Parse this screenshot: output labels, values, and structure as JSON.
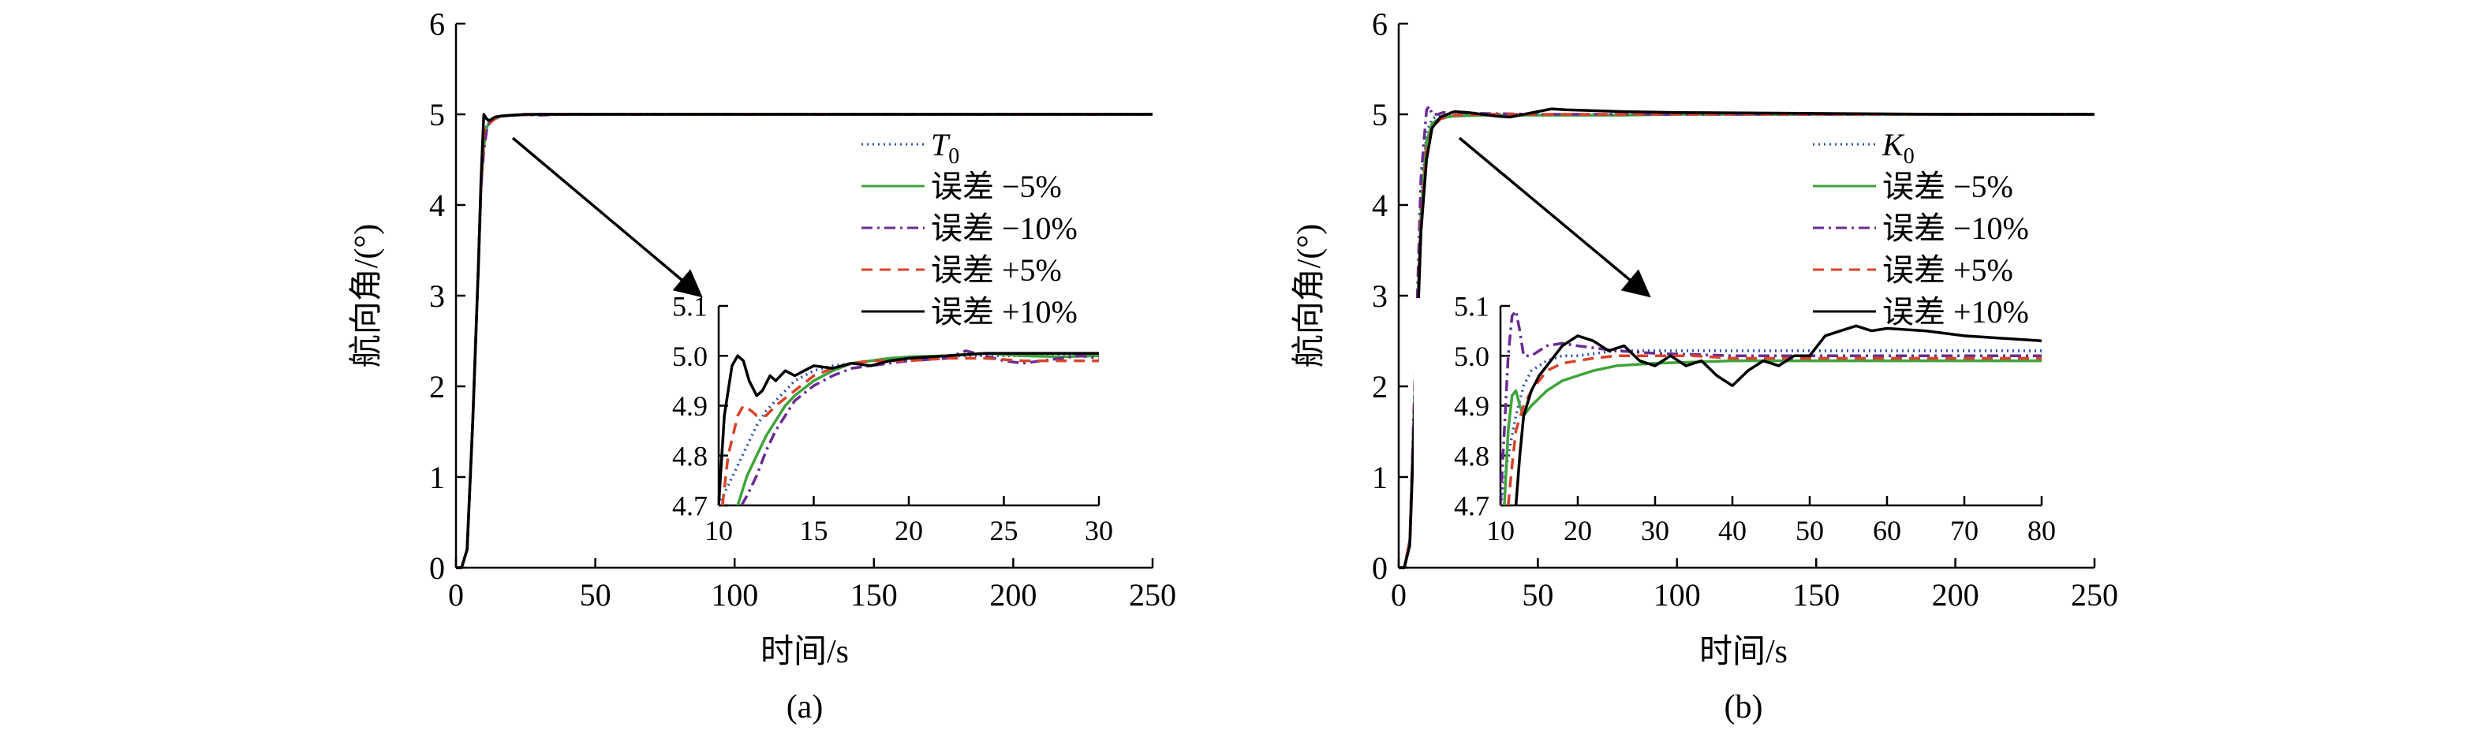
{
  "styles": {
    "dotted": {
      "color": "#2b4fa8",
      "dash": "2 5"
    },
    "solid_green": {
      "color": "#3fa33c",
      "dash": ""
    },
    "dashdot": {
      "color": "#6a2c91",
      "dash": "14 6 3 6"
    },
    "dashed_red": {
      "color": "#d8432a",
      "dash": "14 9"
    },
    "solid_black": {
      "color": "#000000",
      "dash": ""
    }
  },
  "chart_data": [
    {
      "id": "a",
      "caption": "(a)",
      "type": "line",
      "xlabel": "时间/s",
      "ylabel": "航向角/(°)",
      "xlim": [
        0,
        250
      ],
      "ylim": [
        0,
        6
      ],
      "xticks": [
        0,
        50,
        100,
        150,
        200,
        250
      ],
      "yticks": [
        0,
        1,
        2,
        3,
        4,
        5,
        6
      ],
      "legend_position": "right",
      "series": [
        {
          "name": "T",
          "name_sub": "0",
          "style": "dotted",
          "x": [
            0,
            2,
            4,
            6,
            8,
            9,
            10,
            11,
            12,
            14,
            16,
            20,
            25,
            30,
            40,
            60,
            100,
            150,
            200,
            250
          ],
          "y": [
            0,
            0,
            0.2,
            1.6,
            3.3,
            4.2,
            4.7,
            4.88,
            4.94,
            4.97,
            4.985,
            4.99,
            4.995,
            5.0,
            5.0,
            5.0,
            5.0,
            5.0,
            5.0,
            5.0
          ]
        },
        {
          "name": "误差 −5%",
          "style": "solid_green",
          "x": [
            0,
            2,
            4,
            6,
            8,
            9,
            10,
            11,
            12,
            14,
            16,
            20,
            25,
            30,
            40,
            60,
            100,
            150,
            200,
            250
          ],
          "y": [
            0,
            0,
            0.2,
            1.6,
            3.3,
            4.2,
            4.65,
            4.85,
            4.92,
            4.96,
            4.98,
            4.99,
            4.995,
            5.0,
            5.0,
            5.0,
            5.0,
            5.0,
            5.0,
            5.0
          ]
        },
        {
          "name": "误差 −10%",
          "style": "dashdot",
          "x": [
            0,
            2,
            4,
            6,
            8,
            9,
            10,
            11,
            12,
            14,
            16,
            20,
            25,
            30,
            40,
            60,
            100,
            150,
            200,
            250
          ],
          "y": [
            0,
            0,
            0.2,
            1.6,
            3.3,
            4.2,
            4.6,
            4.82,
            4.9,
            4.95,
            4.98,
            4.99,
            4.995,
            4.99,
            5.0,
            5.0,
            5.0,
            5.0,
            5.0,
            5.0
          ]
        },
        {
          "name": "误差 +5%",
          "style": "dashed_red",
          "x": [
            0,
            2,
            4,
            6,
            8,
            9,
            10,
            11,
            12,
            14,
            16,
            20,
            25,
            30,
            40,
            60,
            100,
            150,
            200,
            250
          ],
          "y": [
            0,
            0,
            0.2,
            1.6,
            3.3,
            4.2,
            4.8,
            4.89,
            4.9,
            4.95,
            4.98,
            4.99,
            4.995,
            5.0,
            5.0,
            5.0,
            5.0,
            5.0,
            5.0,
            5.0
          ]
        },
        {
          "name": "误差 +10%",
          "style": "solid_black",
          "x": [
            0,
            2,
            4,
            6,
            8,
            9,
            10,
            11,
            12,
            14,
            16,
            20,
            25,
            30,
            40,
            60,
            100,
            150,
            200,
            250
          ],
          "y": [
            0,
            0,
            0.2,
            1.6,
            3.3,
            4.3,
            5.0,
            4.95,
            4.93,
            4.97,
            4.98,
            4.99,
            5.0,
            5.0,
            5.0,
            5.0,
            5.0,
            5.0,
            5.0,
            5.0
          ]
        }
      ],
      "inset": {
        "xlim": [
          10,
          30
        ],
        "ylim": [
          4.7,
          5.1
        ],
        "xticks": [
          10,
          15,
          20,
          25,
          30
        ],
        "yticks": [
          4.7,
          4.8,
          4.9,
          5.0,
          5.1
        ],
        "series": [
          {
            "style": "dotted",
            "x": [
              10,
              10.5,
              11,
              11.5,
              12,
              12.5,
              13,
              13.5,
              14,
              15,
              16,
              17,
              18,
              20,
              22,
              24,
              26,
              28,
              30
            ],
            "y": [
              4.7,
              4.74,
              4.78,
              4.82,
              4.86,
              4.89,
              4.91,
              4.93,
              4.95,
              4.97,
              4.98,
              4.985,
              4.99,
              4.995,
              5.0,
              5.0,
              5.0,
              5.0,
              5.0
            ]
          },
          {
            "style": "solid_green",
            "x": [
              11,
              11.5,
              12,
              12.5,
              13,
              13.5,
              14,
              15,
              16,
              17,
              18,
              19,
              20,
              22,
              24,
              26,
              28,
              30
            ],
            "y": [
              4.7,
              4.76,
              4.8,
              4.84,
              4.87,
              4.9,
              4.92,
              4.95,
              4.97,
              4.985,
              4.99,
              4.995,
              4.998,
              5.0,
              5.005,
              5.0,
              4.998,
              5.0
            ]
          },
          {
            "style": "dashdot",
            "x": [
              11.2,
              11.5,
              12,
              12.5,
              13,
              13.5,
              14,
              15,
              16,
              17,
              18,
              19,
              20,
              22,
              23,
              24,
              25,
              26,
              27,
              28,
              29,
              30
            ],
            "y": [
              4.7,
              4.72,
              4.76,
              4.81,
              4.85,
              4.88,
              4.91,
              4.94,
              4.96,
              4.975,
              4.98,
              4.985,
              4.99,
              4.995,
              5.01,
              5.0,
              4.99,
              4.985,
              4.99,
              4.995,
              5.0,
              4.995
            ]
          },
          {
            "style": "dashed_red",
            "x": [
              10.2,
              10.5,
              11,
              11.3,
              11.7,
              12,
              12.5,
              13,
              14,
              15,
              16,
              17,
              18,
              20,
              22,
              24,
              26,
              28,
              30
            ],
            "y": [
              4.7,
              4.8,
              4.88,
              4.9,
              4.89,
              4.88,
              4.88,
              4.9,
              4.93,
              4.96,
              4.975,
              4.985,
              4.99,
              4.99,
              4.995,
              4.995,
              4.99,
              4.99,
              4.99
            ]
          },
          {
            "style": "solid_black",
            "x": [
              10,
              10.3,
              10.7,
              11,
              11.3,
              11.6,
              12,
              12.3,
              12.7,
              13,
              13.5,
              14,
              14.5,
              15,
              16,
              17,
              18,
              19,
              20,
              22,
              24,
              26,
              28,
              30
            ],
            "y": [
              4.7,
              4.88,
              4.98,
              5.0,
              4.99,
              4.95,
              4.92,
              4.93,
              4.96,
              4.95,
              4.97,
              4.96,
              4.97,
              4.98,
              4.975,
              4.985,
              4.98,
              4.99,
              4.995,
              5.0,
              5.005,
              5.005,
              5.005,
              5.005
            ]
          }
        ]
      }
    },
    {
      "id": "b",
      "caption": "(b)",
      "type": "line",
      "xlabel": "时间/s",
      "ylabel": "航向角/(°)",
      "xlim": [
        0,
        250
      ],
      "ylim": [
        0,
        6
      ],
      "xticks": [
        0,
        50,
        100,
        150,
        200,
        250
      ],
      "yticks": [
        0,
        1,
        2,
        3,
        4,
        5,
        6
      ],
      "legend_position": "right",
      "series": [
        {
          "name": "K",
          "name_sub": "0",
          "style": "dotted",
          "x": [
            0,
            2,
            4,
            6,
            8,
            10,
            12,
            15,
            20,
            30,
            50,
            80,
            100,
            150,
            200,
            250
          ],
          "y": [
            0,
            0,
            0.3,
            2.2,
            4.0,
            4.8,
            4.95,
            5.0,
            5.0,
            5.0,
            5.0,
            5.0,
            5.0,
            5.0,
            5.0,
            5.0
          ]
        },
        {
          "name": "误差 −5%",
          "style": "solid_green",
          "x": [
            0,
            2,
            4,
            6,
            8,
            10,
            12,
            15,
            20,
            30,
            50,
            80,
            100,
            150,
            200,
            250
          ],
          "y": [
            0,
            0,
            0.3,
            2.2,
            3.9,
            4.7,
            4.9,
            4.96,
            4.98,
            4.99,
            4.99,
            4.99,
            5.0,
            5.0,
            5.0,
            5.0
          ]
        },
        {
          "name": "误差 −10%",
          "style": "dashdot",
          "x": [
            0,
            2,
            4,
            6,
            8,
            10,
            11,
            12,
            14,
            16,
            20,
            30,
            50,
            80,
            100,
            150,
            200,
            250
          ],
          "y": [
            0,
            0,
            0.3,
            2.3,
            4.3,
            5.05,
            5.09,
            5.0,
            5.0,
            5.02,
            5.02,
            5.01,
            5.0,
            5.0,
            5.0,
            5.0,
            5.0,
            5.0
          ]
        },
        {
          "name": "误差 +5%",
          "style": "dashed_red",
          "x": [
            0,
            2,
            4,
            6,
            8,
            10,
            12,
            15,
            20,
            30,
            50,
            80,
            100,
            150,
            200,
            250
          ],
          "y": [
            0,
            0,
            0.3,
            2.0,
            3.8,
            4.6,
            4.85,
            4.95,
            4.99,
            5.0,
            5.0,
            5.0,
            5.0,
            5.0,
            5.0,
            5.0
          ]
        },
        {
          "name": "误差 +10%",
          "style": "solid_black",
          "x": [
            0,
            2,
            4,
            6,
            8,
            10,
            12,
            15,
            20,
            25,
            30,
            35,
            40,
            45,
            50,
            55,
            60,
            70,
            80,
            100,
            150,
            200,
            250
          ],
          "y": [
            0,
            0,
            0.25,
            2.0,
            3.7,
            4.5,
            4.85,
            4.97,
            5.03,
            5.02,
            5.0,
            4.98,
            4.97,
            5.0,
            5.03,
            5.06,
            5.05,
            5.04,
            5.03,
            5.02,
            5.01,
            5.0,
            5.0
          ]
        }
      ],
      "inset": {
        "xlim": [
          10,
          80
        ],
        "ylim": [
          4.7,
          5.1
        ],
        "xticks": [
          10,
          20,
          30,
          40,
          50,
          60,
          70,
          80
        ],
        "yticks": [
          4.7,
          4.8,
          4.9,
          5.0,
          5.1
        ],
        "series": [
          {
            "style": "dotted",
            "x": [
              10,
              11,
              12,
              13,
              14,
              16,
              18,
              20,
              25,
              30,
              40,
              50,
              60,
              70,
              80
            ],
            "y": [
              4.7,
              4.8,
              4.88,
              4.94,
              4.97,
              4.99,
              5.0,
              5.0,
              5.01,
              5.01,
              5.01,
              5.01,
              5.01,
              5.01,
              5.01
            ]
          },
          {
            "style": "solid_green",
            "x": [
              10.5,
              11,
              11.5,
              12,
              12.5,
              13,
              14,
              16,
              18,
              20,
              22,
              25,
              30,
              40,
              50,
              60,
              70,
              80
            ],
            "y": [
              4.7,
              4.85,
              4.92,
              4.93,
              4.9,
              4.88,
              4.9,
              4.93,
              4.95,
              4.96,
              4.97,
              4.98,
              4.985,
              4.99,
              4.99,
              4.99,
              4.99,
              4.99
            ]
          },
          {
            "style": "dashdot",
            "x": [
              10,
              10.5,
              11,
              11.5,
              12,
              12.5,
              13,
              14,
              15,
              16,
              18,
              20,
              25,
              30,
              40,
              50,
              60,
              70,
              80
            ],
            "y": [
              4.7,
              4.85,
              5.0,
              5.08,
              5.09,
              5.05,
              5.0,
              5.0,
              5.01,
              5.02,
              5.025,
              5.02,
              5.01,
              5.005,
              5.0,
              5.0,
              5.0,
              5.0,
              5.0
            ]
          },
          {
            "style": "dashed_red",
            "x": [
              11,
              11.5,
              12,
              13,
              14,
              15,
              16,
              18,
              20,
              22,
              25,
              30,
              35,
              40,
              50,
              60,
              70,
              80
            ],
            "y": [
              4.7,
              4.78,
              4.85,
              4.9,
              4.93,
              4.95,
              4.97,
              4.985,
              4.99,
              4.995,
              5.0,
              5.0,
              5.0,
              4.995,
              4.995,
              4.995,
              4.995,
              4.995
            ]
          },
          {
            "style": "solid_black",
            "x": [
              12,
              12.5,
              13,
              14,
              15,
              16,
              18,
              20,
              22,
              24,
              26,
              28,
              30,
              32,
              34,
              36,
              38,
              40,
              42,
              44,
              46,
              48,
              50,
              52,
              54,
              56,
              58,
              60,
              65,
              70,
              75,
              80
            ],
            "y": [
              4.7,
              4.8,
              4.88,
              4.93,
              4.96,
              4.98,
              5.02,
              5.04,
              5.03,
              5.01,
              5.02,
              4.99,
              4.98,
              5.0,
              4.98,
              4.99,
              4.96,
              4.94,
              4.97,
              4.99,
              4.98,
              5.0,
              5.0,
              5.04,
              5.05,
              5.06,
              5.05,
              5.055,
              5.05,
              5.04,
              5.035,
              5.03
            ]
          }
        ]
      }
    }
  ]
}
